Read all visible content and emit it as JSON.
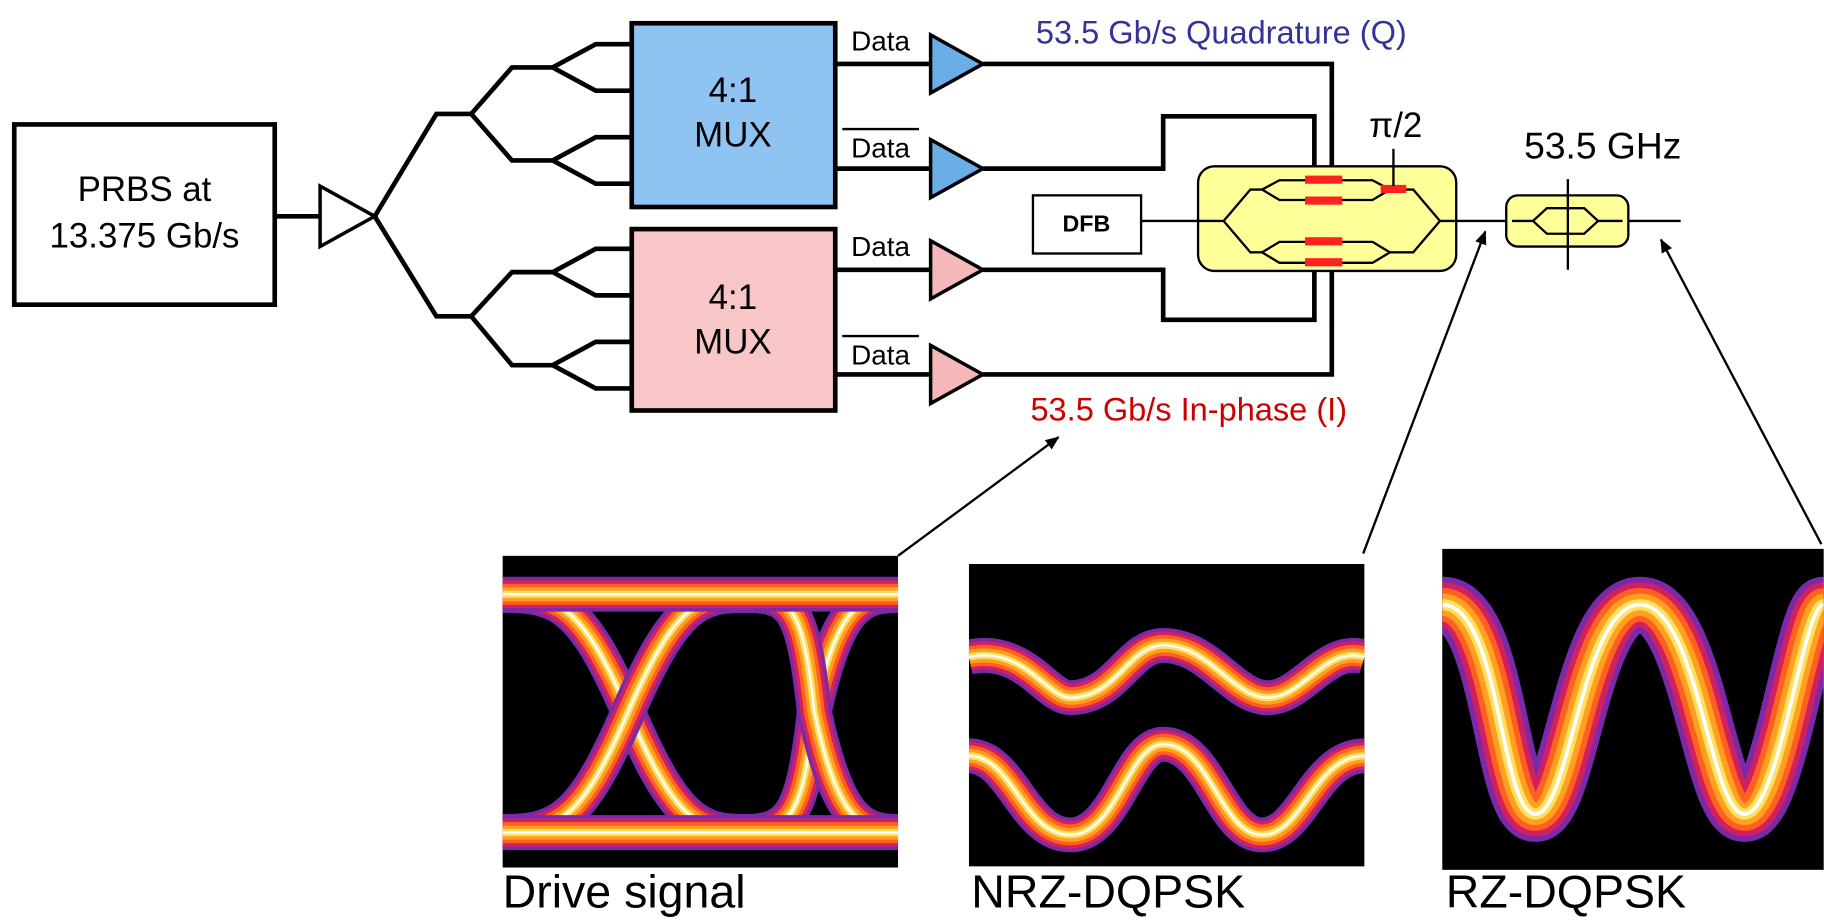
{
  "source": {
    "lines": [
      "PRBS at",
      "13.375 Gb/s"
    ]
  },
  "muxes": [
    {
      "lines": [
        "4:1",
        "MUX"
      ]
    },
    {
      "lines": [
        "4:1",
        "MUX"
      ]
    }
  ],
  "mux_outputs": [
    "Data",
    "Data",
    "Data",
    "Data"
  ],
  "signals": {
    "quadrature": "53.5 Gb/s Quadrature (Q)",
    "in_phase": "53.5 Gb/s In-phase (I)"
  },
  "laser": "DFB",
  "phase_shift": "π/2",
  "pulse_carver": "53.5 GHz",
  "eye_diagrams": [
    {
      "caption": "Drive signal"
    },
    {
      "caption": "NRZ-DQPSK"
    },
    {
      "caption": "RZ-DQPSK"
    }
  ]
}
